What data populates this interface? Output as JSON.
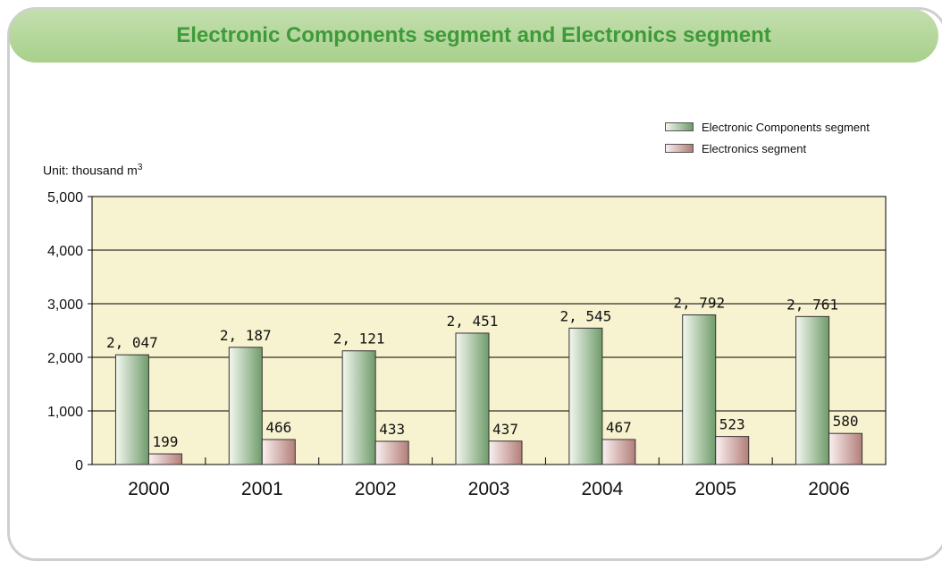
{
  "title": "Electronic Components segment and Electronics segment",
  "unit_label": {
    "prefix": "Unit: thousand m",
    "superscript": "3"
  },
  "colors": {
    "plot_background": "#f7f2cf",
    "series_1_light": "#f4f8ef",
    "series_1_dark": "#6f9b6b",
    "series_2_light": "#fbf1f1",
    "series_2_dark": "#b27e78",
    "title_text": "#3f9a3a",
    "title_bar": "#b3d79a"
  },
  "chart_data": {
    "type": "bar",
    "categories": [
      "2000",
      "2001",
      "2002",
      "2003",
      "2004",
      "2005",
      "2006"
    ],
    "series": [
      {
        "name": "Electronic Components segment",
        "values": [
          2047,
          2187,
          2121,
          2451,
          2545,
          2792,
          2761
        ],
        "labels": [
          "2, 047",
          "2, 187",
          "2, 121",
          "2, 451",
          "2, 545",
          "2, 792",
          "2, 761"
        ]
      },
      {
        "name": "Electronics segment",
        "values": [
          199,
          466,
          433,
          437,
          467,
          523,
          580
        ],
        "labels": [
          "199",
          "466",
          "433",
          "437",
          "467",
          "523",
          "580"
        ]
      }
    ],
    "ylim": [
      0,
      5000
    ],
    "yticks": [
      0,
      1000,
      2000,
      3000,
      4000,
      5000
    ],
    "ytick_labels": [
      "0",
      "1,000",
      "2,000",
      "3,000",
      "4,000",
      "5,000"
    ],
    "grid": true,
    "legend_position": "top-right"
  }
}
